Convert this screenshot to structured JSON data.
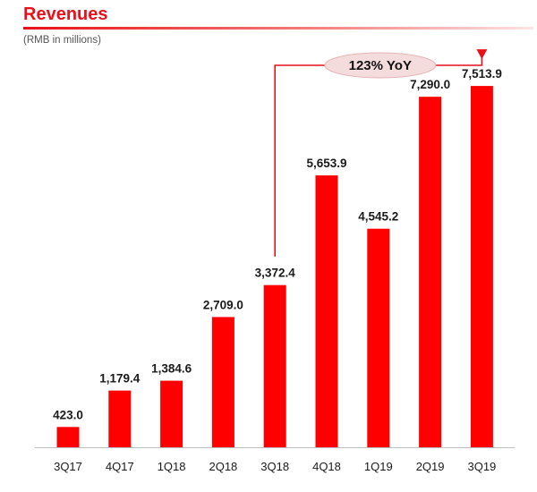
{
  "header": {
    "title": "Revenues",
    "subtitle": "(RMB in millions)"
  },
  "chart_data": {
    "type": "bar",
    "title": "Revenues",
    "subtitle": "(RMB in millions)",
    "xlabel": "",
    "ylabel": "",
    "categories": [
      "3Q17",
      "4Q17",
      "1Q18",
      "2Q18",
      "3Q18",
      "4Q18",
      "1Q19",
      "2Q19",
      "3Q19"
    ],
    "values": [
      423.0,
      1179.4,
      1384.6,
      2709.0,
      3372.4,
      5653.9,
      4545.2,
      7290.0,
      7513.9
    ],
    "value_labels": [
      "423.0",
      "1,179.4",
      "1,384.6",
      "2,709.0",
      "3,372.4",
      "5,653.9",
      "4,545.2",
      "7,290.0",
      "7,513.9"
    ],
    "ylim": [
      0,
      8000
    ],
    "grid": false,
    "annotations": [
      {
        "text": "123% YoY",
        "from_category": "3Q18",
        "to_category": "3Q19"
      }
    ],
    "colors": {
      "bar": "#ff0000",
      "accent": "#e8101a",
      "badge": "#f5dcdc",
      "arrow": "#e8101a"
    }
  }
}
